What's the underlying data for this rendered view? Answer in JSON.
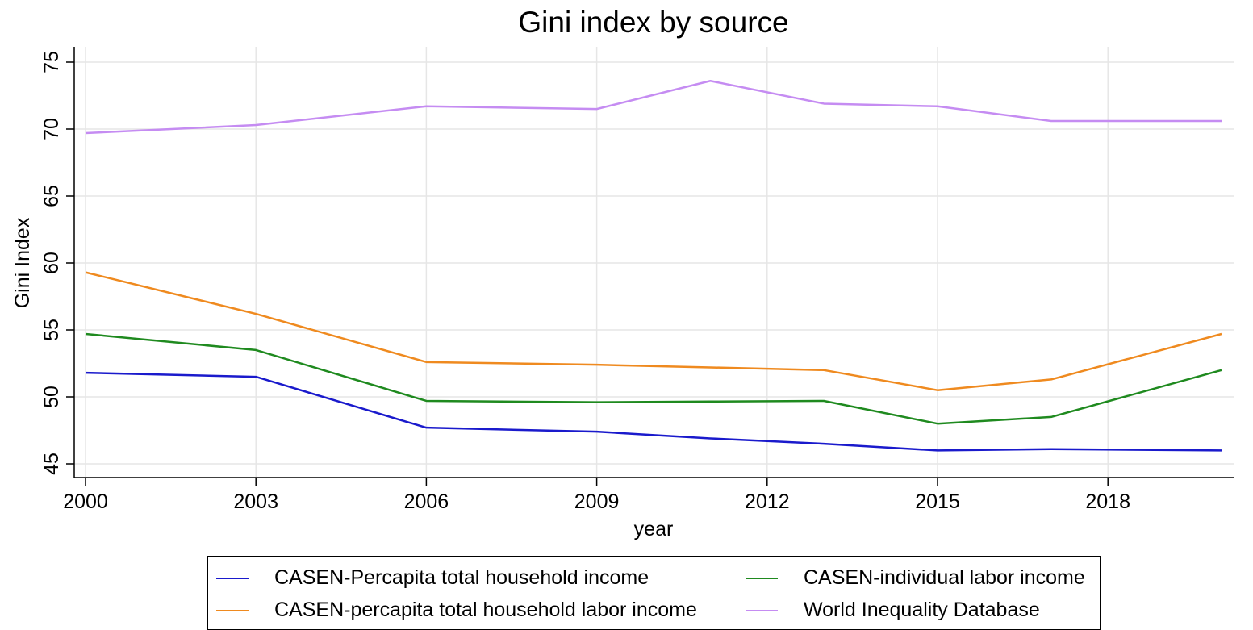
{
  "chart_data": {
    "type": "line",
    "title": "Gini index by source",
    "xlabel": "year",
    "ylabel": "Gini Index",
    "xlim": [
      2000,
      2020
    ],
    "ylim": [
      44,
      76
    ],
    "xticks": [
      2000,
      2003,
      2006,
      2009,
      2012,
      2015,
      2018
    ],
    "yticks": [
      45,
      50,
      55,
      60,
      65,
      70,
      75
    ],
    "grid": true,
    "legend_position": "bottom",
    "series": [
      {
        "name": "CASEN-Percapita total household income",
        "color": "#1a1acc",
        "x": [
          2000,
          2003,
          2006,
          2009,
          2011,
          2013,
          2015,
          2017,
          2020
        ],
        "values": [
          51.8,
          51.5,
          47.7,
          47.4,
          46.9,
          46.5,
          46.0,
          46.1,
          46.0
        ]
      },
      {
        "name": "CASEN-individual labor income",
        "color": "#1f8a1f",
        "x": [
          2000,
          2003,
          2006,
          2009,
          2011,
          2013,
          2015,
          2017,
          2020
        ],
        "values": [
          54.7,
          53.5,
          49.7,
          49.6,
          49.65,
          49.7,
          48.0,
          48.5,
          52.0
        ]
      },
      {
        "name": "CASEN-percapita total household labor income",
        "color": "#ef8a1f",
        "x": [
          2000,
          2003,
          2006,
          2009,
          2011,
          2013,
          2015,
          2017,
          2020
        ],
        "values": [
          59.3,
          56.2,
          52.6,
          52.4,
          52.2,
          52.0,
          50.5,
          51.3,
          54.7
        ]
      },
      {
        "name": "World Inequality Database",
        "color": "#c58cf2",
        "x": [
          2000,
          2003,
          2006,
          2009,
          2011,
          2013,
          2015,
          2017,
          2020
        ],
        "values": [
          69.7,
          70.3,
          71.7,
          71.5,
          73.6,
          71.9,
          71.7,
          70.6,
          70.6
        ]
      }
    ]
  },
  "legend": {
    "items": [
      {
        "label": "CASEN-Percapita total household income",
        "color": "#1a1acc"
      },
      {
        "label": "CASEN-individual labor income",
        "color": "#1f8a1f"
      },
      {
        "label": "CASEN-percapita total household labor income",
        "color": "#ef8a1f"
      },
      {
        "label": "World Inequality Database",
        "color": "#c58cf2"
      }
    ]
  }
}
